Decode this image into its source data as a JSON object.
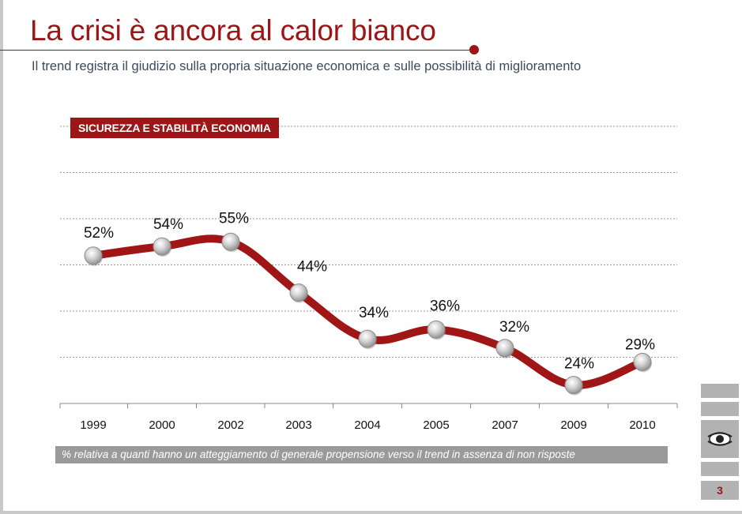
{
  "header": {
    "title": "La crisi è ancora al calor bianco",
    "subtitle": "Il trend registra il giudizio sulla propria situazione economica e sulle possibilità di miglioramento"
  },
  "chart_data": {
    "type": "line",
    "categories": [
      "1999",
      "2000",
      "2002",
      "2003",
      "2004",
      "2005",
      "2007",
      "2009",
      "2010"
    ],
    "series": [
      {
        "name": "SICUREZZA E STABILITÀ ECONOMIA",
        "values": [
          52,
          54,
          55,
          44,
          34,
          36,
          32,
          24,
          29
        ],
        "labels": [
          "52%",
          "54%",
          "55%",
          "44%",
          "34%",
          "36%",
          "32%",
          "24%",
          "29%"
        ]
      }
    ],
    "ylim": [
      20,
      80
    ],
    "grid": true,
    "line_color": "#a01616",
    "marker_color": "#b0b0b0"
  },
  "footnote": "% relativa a quanti hanno un atteggiamento di generale propensione verso  il trend in assenza di non risposte",
  "page_number": "3",
  "icons": {
    "logo": "eye-logo-icon"
  }
}
